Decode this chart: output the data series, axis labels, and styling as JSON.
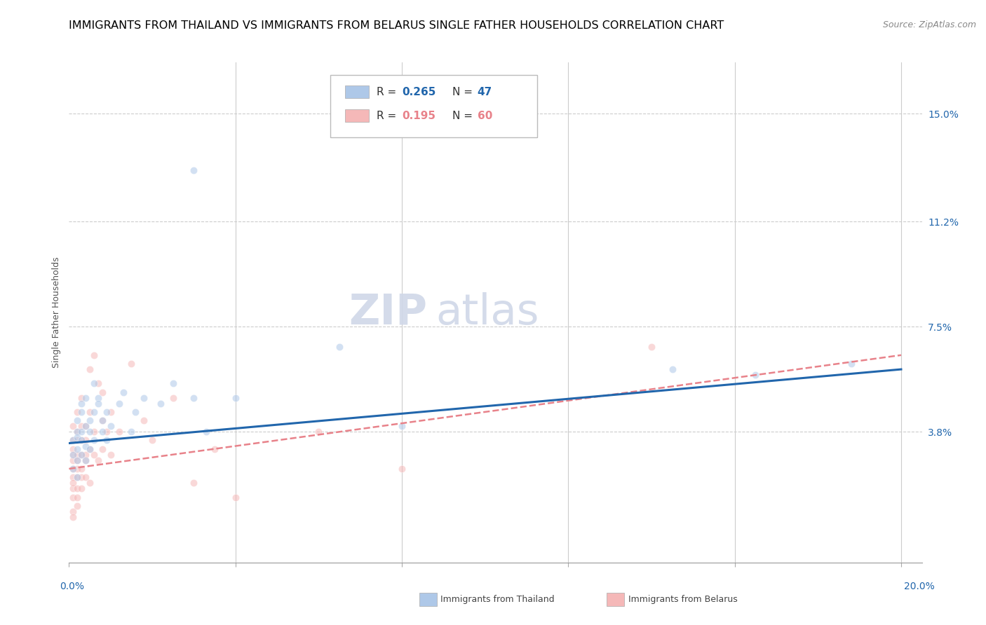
{
  "title": "IMMIGRANTS FROM THAILAND VS IMMIGRANTS FROM BELARUS SINGLE FATHER HOUSEHOLDS CORRELATION CHART",
  "source": "Source: ZipAtlas.com",
  "ylabel": "Single Father Households",
  "xlim": [
    0.0,
    0.205
  ],
  "ylim": [
    -0.008,
    0.168
  ],
  "ytick_vals": [
    0.0,
    0.038,
    0.075,
    0.112,
    0.15
  ],
  "ytick_labels": [
    "",
    "3.8%",
    "7.5%",
    "11.2%",
    "15.0%"
  ],
  "xtick_label_left": "0.0%",
  "xtick_label_right": "20.0%",
  "legend_r1": "0.265",
  "legend_n1": "47",
  "legend_r2": "0.195",
  "legend_n2": "60",
  "color_thailand": "#aec8e8",
  "color_belarus": "#f5b8b8",
  "color_thailand_line": "#2166ac",
  "color_belarus_line": "#e8828a",
  "bottom_legend_thailand": "Immigrants from Thailand",
  "bottom_legend_belarus": "Immigrants from Belarus",
  "thailand_x": [
    0.001,
    0.001,
    0.001,
    0.002,
    0.002,
    0.002,
    0.002,
    0.002,
    0.002,
    0.003,
    0.003,
    0.003,
    0.003,
    0.003,
    0.004,
    0.004,
    0.004,
    0.004,
    0.005,
    0.005,
    0.005,
    0.006,
    0.006,
    0.006,
    0.007,
    0.007,
    0.008,
    0.008,
    0.009,
    0.009,
    0.01,
    0.012,
    0.013,
    0.015,
    0.016,
    0.018,
    0.022,
    0.025,
    0.03,
    0.033,
    0.04,
    0.065,
    0.08,
    0.145,
    0.165,
    0.188,
    0.03
  ],
  "thailand_y": [
    0.03,
    0.035,
    0.025,
    0.038,
    0.032,
    0.028,
    0.042,
    0.022,
    0.036,
    0.038,
    0.045,
    0.03,
    0.048,
    0.035,
    0.04,
    0.033,
    0.05,
    0.028,
    0.042,
    0.038,
    0.032,
    0.045,
    0.055,
    0.035,
    0.05,
    0.048,
    0.038,
    0.042,
    0.045,
    0.035,
    0.04,
    0.048,
    0.052,
    0.038,
    0.045,
    0.05,
    0.048,
    0.055,
    0.05,
    0.038,
    0.05,
    0.068,
    0.04,
    0.06,
    0.058,
    0.062,
    0.13
  ],
  "belarus_x": [
    0.001,
    0.001,
    0.001,
    0.001,
    0.001,
    0.001,
    0.001,
    0.001,
    0.001,
    0.001,
    0.001,
    0.001,
    0.002,
    0.002,
    0.002,
    0.002,
    0.002,
    0.002,
    0.002,
    0.002,
    0.002,
    0.002,
    0.003,
    0.003,
    0.003,
    0.003,
    0.003,
    0.003,
    0.003,
    0.004,
    0.004,
    0.004,
    0.004,
    0.004,
    0.005,
    0.005,
    0.005,
    0.005,
    0.006,
    0.006,
    0.006,
    0.007,
    0.007,
    0.008,
    0.008,
    0.008,
    0.009,
    0.01,
    0.01,
    0.012,
    0.015,
    0.018,
    0.02,
    0.025,
    0.03,
    0.035,
    0.04,
    0.06,
    0.08,
    0.14
  ],
  "belarus_y": [
    0.025,
    0.03,
    0.018,
    0.022,
    0.035,
    0.028,
    0.015,
    0.032,
    0.02,
    0.04,
    0.01,
    0.008,
    0.025,
    0.03,
    0.018,
    0.035,
    0.022,
    0.038,
    0.012,
    0.028,
    0.045,
    0.015,
    0.03,
    0.022,
    0.04,
    0.035,
    0.018,
    0.025,
    0.05,
    0.028,
    0.035,
    0.022,
    0.04,
    0.03,
    0.045,
    0.032,
    0.02,
    0.06,
    0.038,
    0.03,
    0.065,
    0.055,
    0.028,
    0.042,
    0.052,
    0.032,
    0.038,
    0.03,
    0.045,
    0.038,
    0.062,
    0.042,
    0.035,
    0.05,
    0.02,
    0.032,
    0.015,
    0.038,
    0.025,
    0.068
  ],
  "title_fontsize": 11.5,
  "source_fontsize": 9,
  "axis_label_fontsize": 9,
  "tick_fontsize": 10,
  "legend_fontsize": 11,
  "watermark_fontsize": 44,
  "scatter_size": 55,
  "scatter_alpha": 0.55
}
